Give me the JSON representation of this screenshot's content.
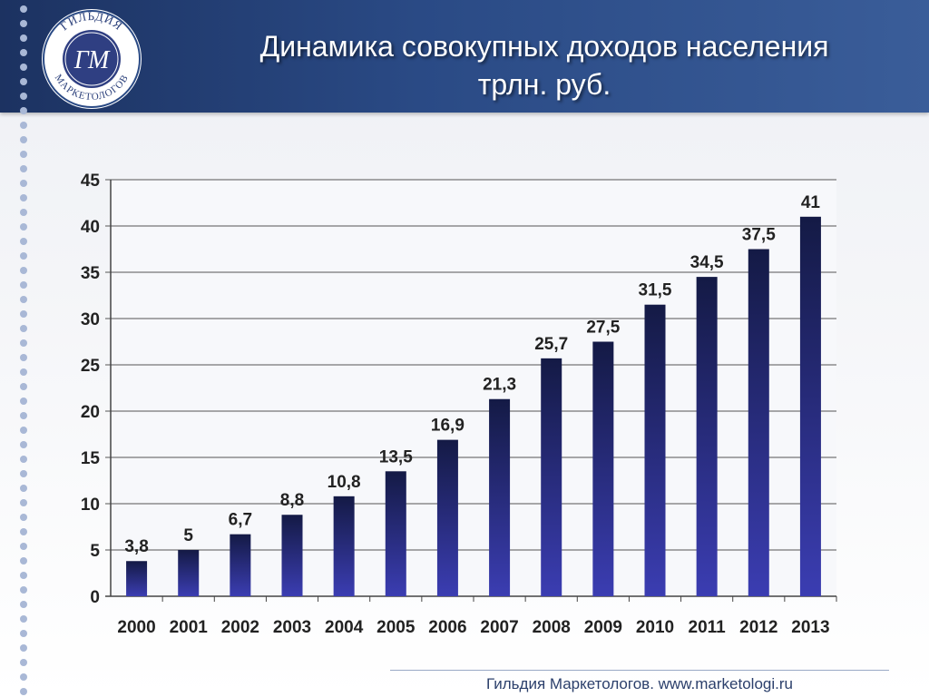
{
  "header": {
    "title_line1": "Динамика совокупных доходов населения",
    "title_line2": "трлн. руб."
  },
  "logo": {
    "top_text": "ГИЛЬДИЯ",
    "bottom_text": "МАРКЕТОЛОГОВ",
    "monogram": "ГМ"
  },
  "footer": {
    "text": "Гильдия Маркетологов.  www.marketologi.ru"
  },
  "colors": {
    "bar_dark": "#141a45",
    "bar_light": "#3b3db2",
    "header": "#24407a"
  },
  "chart_data": {
    "type": "bar",
    "title": "Динамика совокупных доходов населения",
    "subtitle": "трлн. руб.",
    "categories": [
      "2000",
      "2001",
      "2002",
      "2003",
      "2004",
      "2005",
      "2006",
      "2007",
      "2008",
      "2009",
      "2010",
      "2011",
      "2012",
      "2013"
    ],
    "values": [
      3.8,
      5,
      6.7,
      8.8,
      10.8,
      13.5,
      16.9,
      21.3,
      25.7,
      27.5,
      31.5,
      34.5,
      37.5,
      41
    ],
    "value_labels": [
      "3,8",
      "5",
      "6,7",
      "8,8",
      "10,8",
      "13,5",
      "16,9",
      "21,3",
      "25,7",
      "27,5",
      "31,5",
      "34,5",
      "37,5",
      "41"
    ],
    "yticks": [
      "0",
      "5",
      "10",
      "15",
      "20",
      "25",
      "30",
      "35",
      "40",
      "45"
    ],
    "ylim": [
      0,
      45
    ],
    "grid": true,
    "legend": "none"
  }
}
